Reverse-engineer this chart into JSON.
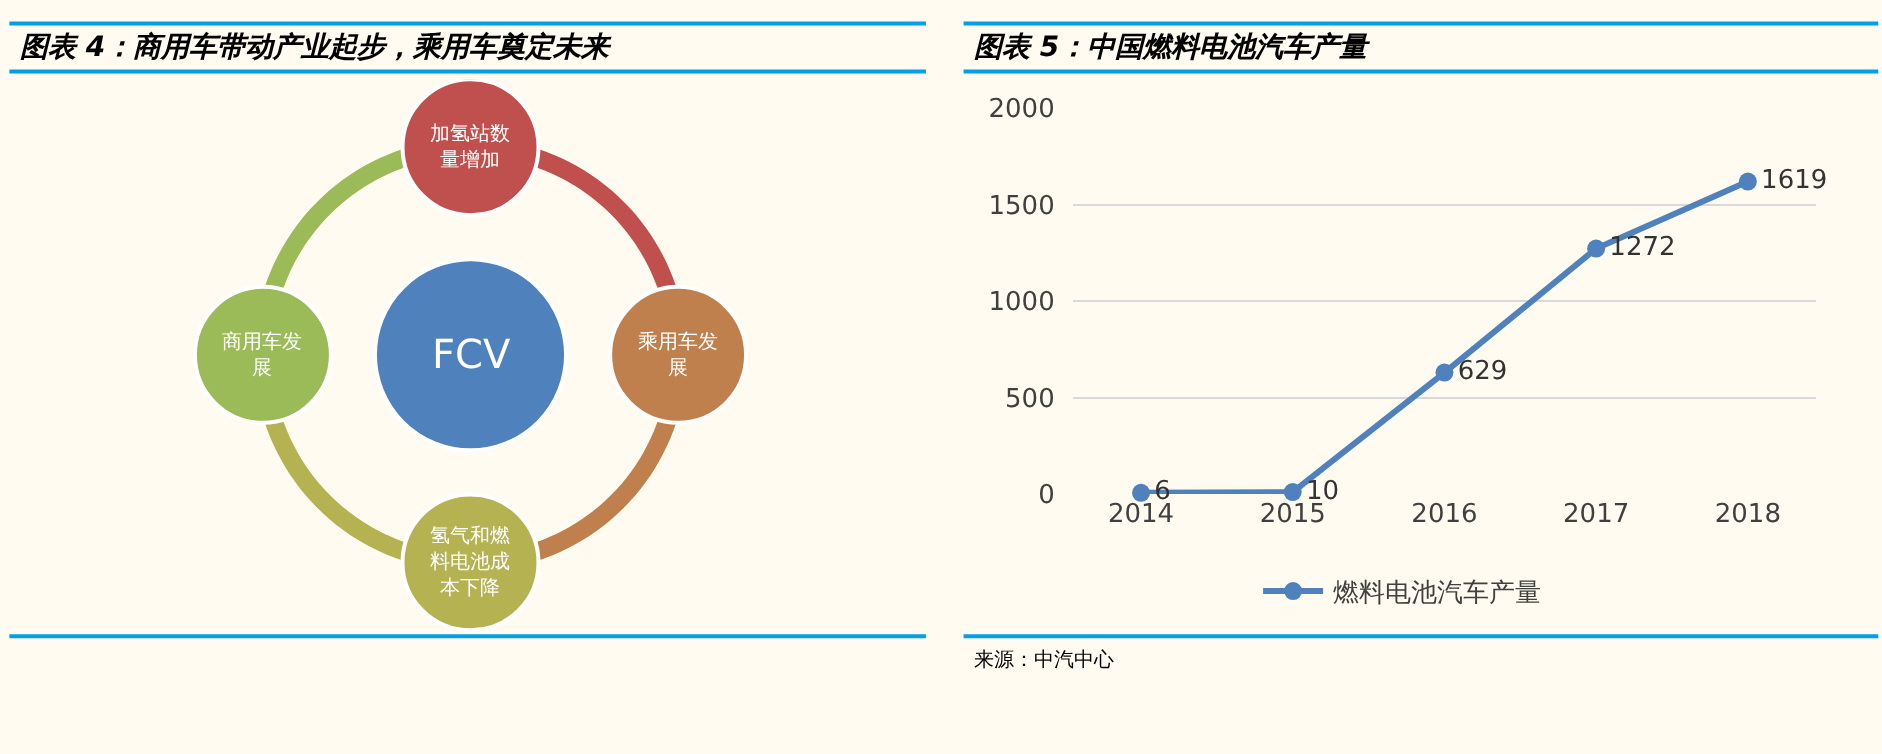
{
  "chart_data": [
    {
      "type": "other",
      "title": "图表 4：商用车带动产业起步，乘用车奠定未来",
      "categories": [
        "FCV",
        "加氢站数量增加",
        "乘用车发展",
        "氢气和燃料电池成本下降",
        "商用车发展"
      ],
      "colors": [
        "#4f81bd",
        "#c0504d",
        "#c0804d",
        "#b5b251",
        "#9bbb59"
      ]
    },
    {
      "type": "line",
      "title": "图表 5：中国燃料电池汽车产量",
      "categories": [
        "2014",
        "2015",
        "2016",
        "2017",
        "2018"
      ],
      "series": [
        {
          "name": "燃料电池汽车产量",
          "color": "#4f81bd",
          "values": [
            6,
            10,
            629,
            1272,
            1619
          ]
        }
      ],
      "ylim": [
        0,
        2000
      ],
      "yticks": [
        0,
        500,
        1000,
        1500,
        2000
      ],
      "grid": "y",
      "legend": "bottom",
      "marker": "circle",
      "line_style": "solid",
      "data_labels": true,
      "annotations": [
        "来源：中汽中心"
      ]
    }
  ]
}
